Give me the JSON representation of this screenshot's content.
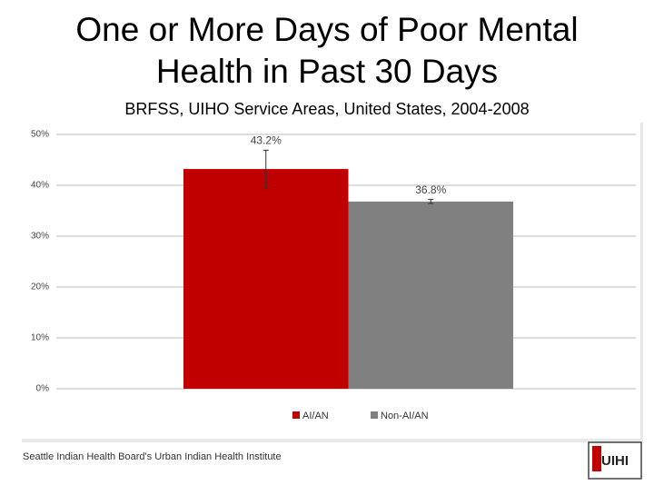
{
  "chart_data": {
    "type": "bar",
    "title": [
      "One or More Days of Poor Mental",
      "Health in Past 30 Days"
    ],
    "subtitle": "BRFSS, UIHO Service Areas, United States, 2004-2008",
    "categories": [
      null
    ],
    "series": [
      {
        "name": "AI/AN",
        "color": "#c00000",
        "values": [
          43.2
        ],
        "errors": [
          3.7
        ],
        "value_labels": [
          "43.2%"
        ]
      },
      {
        "name": "Non-AI/AN",
        "color": "#808080",
        "values": [
          36.8
        ],
        "errors": [
          0.4
        ],
        "value_labels": [
          "36.8%"
        ]
      }
    ],
    "ylim": [
      0,
      50
    ],
    "yticks": [
      {
        "value": 0,
        "label": "0%"
      },
      {
        "value": 10,
        "label": "10%"
      },
      {
        "value": 20,
        "label": "20%"
      },
      {
        "value": 30,
        "label": "30%"
      },
      {
        "value": 40,
        "label": "40%"
      },
      {
        "value": 50,
        "label": "50%"
      }
    ],
    "grid": true,
    "legend": "bottom",
    "footer": "Seattle Indian Health Board's Urban Indian Health Institute",
    "logo": "UIHI"
  }
}
